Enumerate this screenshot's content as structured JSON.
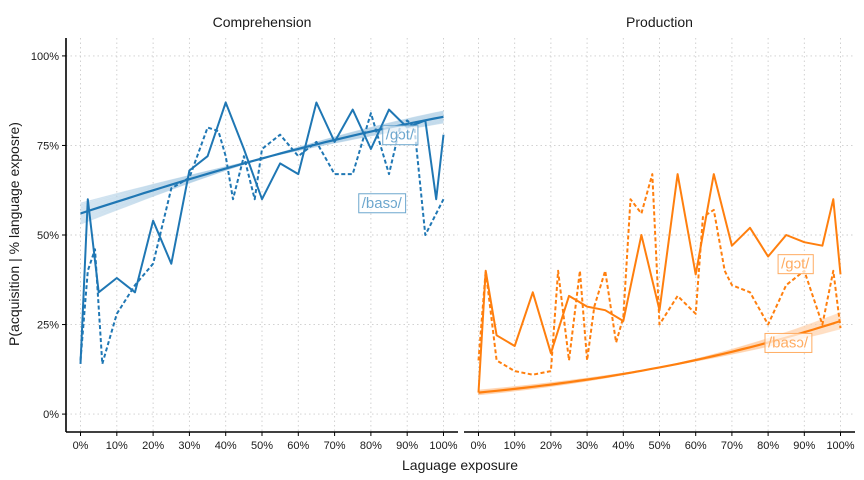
{
  "chart_data": {
    "type": "line",
    "xlabel": "Laguage exposure",
    "ylabel": "P(acquisition | % language exposre)",
    "x_ticks": [
      "0%",
      "10%",
      "20%",
      "30%",
      "40%",
      "50%",
      "60%",
      "70%",
      "80%",
      "90%",
      "100%"
    ],
    "y_ticks": [
      "0%",
      "25%",
      "50%",
      "75%",
      "100%"
    ],
    "xlim": [
      -0.04,
      1.04
    ],
    "ylim": [
      -0.05,
      1.05
    ],
    "grid": true,
    "panels": [
      {
        "title": "Comprehension",
        "color": "#1f77b4",
        "words": [
          {
            "label": "/gɔt/",
            "style": "solid",
            "x": [
              0.0,
              0.02,
              0.05,
              0.1,
              0.15,
              0.2,
              0.25,
              0.3,
              0.35,
              0.4,
              0.45,
              0.5,
              0.55,
              0.6,
              0.65,
              0.7,
              0.75,
              0.8,
              0.85,
              0.9,
              0.95,
              0.98,
              1.0
            ],
            "y": [
              0.14,
              0.6,
              0.34,
              0.38,
              0.34,
              0.54,
              0.42,
              0.68,
              0.72,
              0.87,
              0.74,
              0.6,
              0.7,
              0.67,
              0.87,
              0.76,
              0.85,
              0.74,
              0.85,
              0.8,
              0.82,
              0.6,
              0.78
            ],
            "fit": [
              0.56,
              0.83
            ]
          },
          {
            "label": "/basɔ/",
            "style": "dashed",
            "x": [
              0.0,
              0.02,
              0.04,
              0.06,
              0.1,
              0.15,
              0.2,
              0.25,
              0.3,
              0.35,
              0.38,
              0.4,
              0.42,
              0.45,
              0.48,
              0.5,
              0.55,
              0.6,
              0.65,
              0.7,
              0.75,
              0.8,
              0.85,
              0.88,
              0.9,
              0.92,
              0.95,
              1.0
            ],
            "y": [
              0.15,
              0.4,
              0.46,
              0.14,
              0.28,
              0.36,
              0.42,
              0.63,
              0.66,
              0.8,
              0.79,
              0.72,
              0.6,
              0.72,
              0.6,
              0.74,
              0.78,
              0.72,
              0.76,
              0.67,
              0.67,
              0.84,
              0.67,
              0.8,
              0.82,
              0.8,
              0.5,
              0.6
            ],
            "fit": [
              0.56,
              0.83
            ]
          }
        ]
      },
      {
        "title": "Production",
        "color": "#ff7f0e",
        "words": [
          {
            "label": "/gɔt/",
            "style": "solid",
            "x": [
              0.0,
              0.02,
              0.05,
              0.1,
              0.15,
              0.2,
              0.25,
              0.3,
              0.35,
              0.4,
              0.45,
              0.5,
              0.55,
              0.6,
              0.65,
              0.7,
              0.75,
              0.8,
              0.85,
              0.9,
              0.95,
              0.98,
              1.0
            ],
            "y": [
              0.06,
              0.4,
              0.22,
              0.19,
              0.34,
              0.17,
              0.33,
              0.3,
              0.29,
              0.26,
              0.5,
              0.29,
              0.67,
              0.39,
              0.67,
              0.47,
              0.52,
              0.44,
              0.5,
              0.48,
              0.47,
              0.6,
              0.39
            ],
            "fit": [
              0.06,
              0.26
            ]
          },
          {
            "label": "/basɔ/",
            "style": "dashed",
            "x": [
              0.0,
              0.02,
              0.05,
              0.1,
              0.15,
              0.2,
              0.22,
              0.25,
              0.28,
              0.3,
              0.32,
              0.35,
              0.38,
              0.4,
              0.42,
              0.45,
              0.48,
              0.5,
              0.55,
              0.6,
              0.62,
              0.65,
              0.68,
              0.7,
              0.75,
              0.8,
              0.85,
              0.9,
              0.95,
              0.98,
              1.0
            ],
            "y": [
              0.15,
              0.4,
              0.15,
              0.12,
              0.11,
              0.12,
              0.4,
              0.15,
              0.4,
              0.15,
              0.3,
              0.4,
              0.2,
              0.27,
              0.6,
              0.56,
              0.67,
              0.25,
              0.33,
              0.28,
              0.55,
              0.57,
              0.4,
              0.36,
              0.34,
              0.25,
              0.36,
              0.4,
              0.25,
              0.4,
              0.24
            ],
            "fit": [
              0.06,
              0.26
            ]
          }
        ]
      }
    ]
  }
}
